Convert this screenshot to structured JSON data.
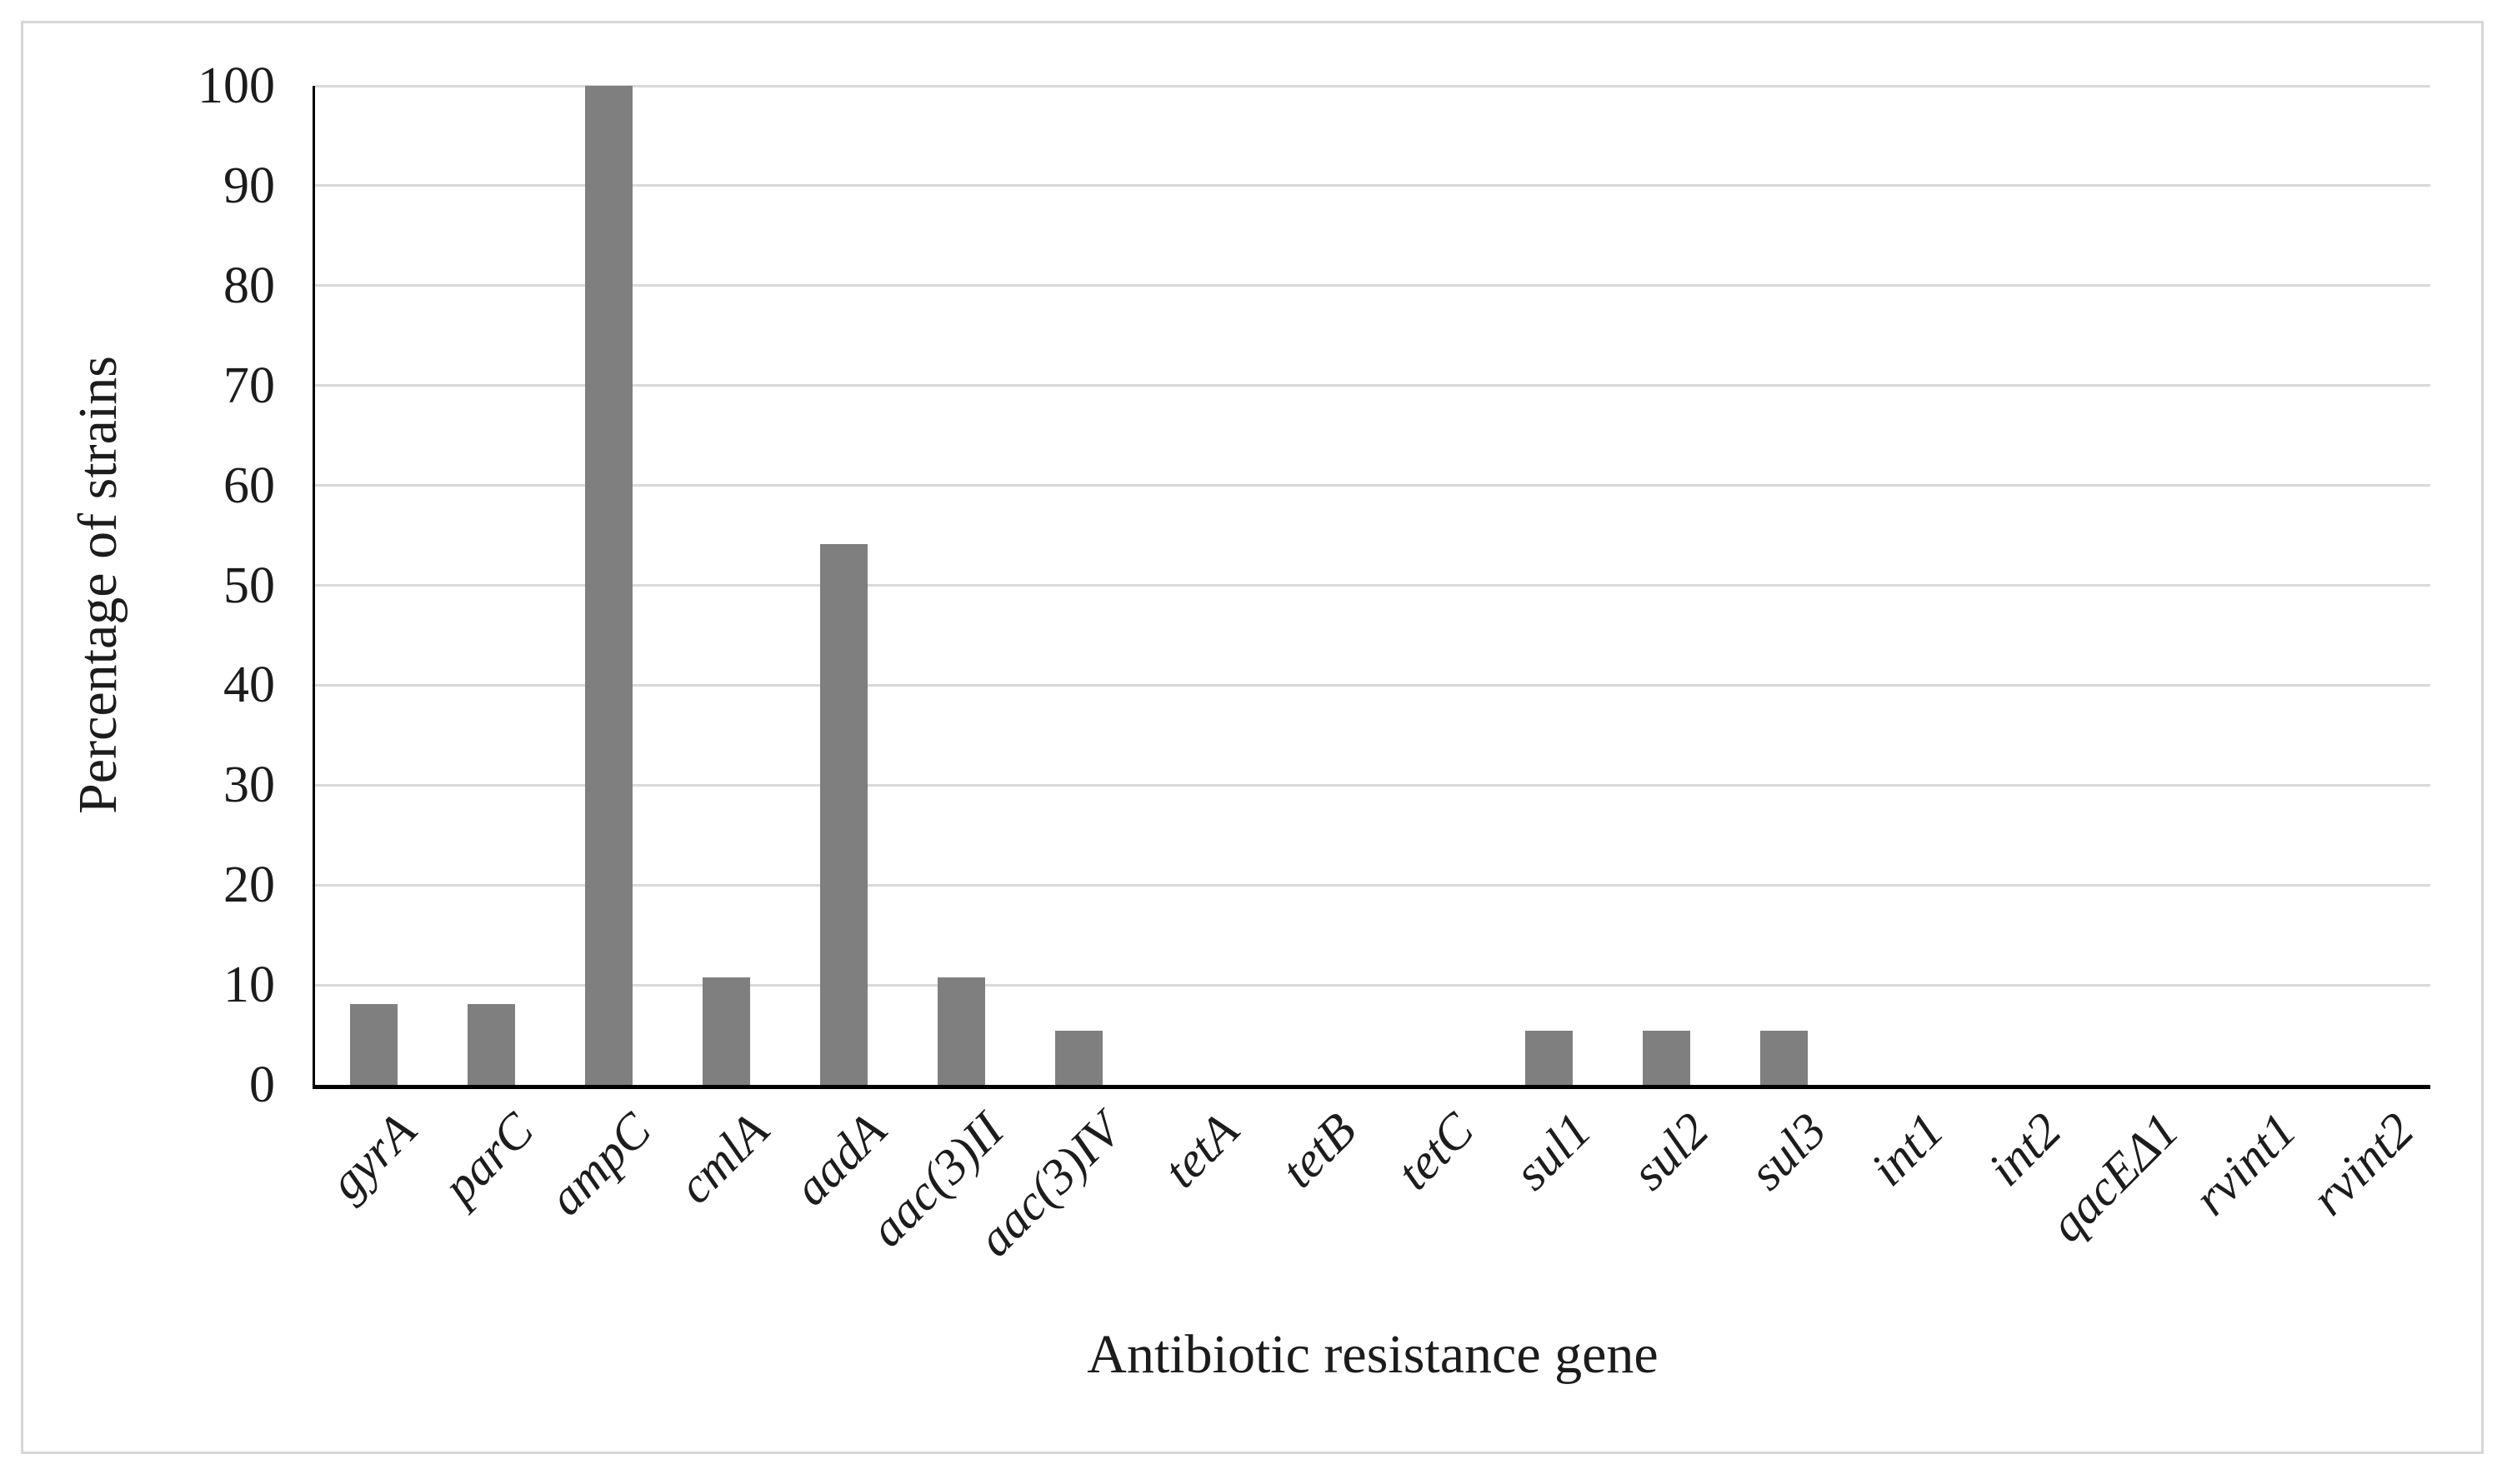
{
  "figure": {
    "background": "#ffffff",
    "frame_color": "#d6d6d6"
  },
  "chart_data": {
    "type": "bar",
    "title": "",
    "xlabel": "Antibiotic resistance gene",
    "ylabel": "Percentage of strains",
    "categories": [
      "gyrA",
      "parC",
      "ampC",
      "cmlA",
      "aadA",
      "aac(3)II",
      "aac(3)IV",
      "tetA",
      "tetB",
      "tetC",
      "sul1",
      "sul2",
      "sul3",
      "int1",
      "int2",
      "qacEΔ1",
      "rvint1",
      "rvint2"
    ],
    "values": [
      8.1,
      8.1,
      100,
      10.8,
      54.1,
      10.8,
      5.4,
      0,
      0,
      0,
      5.4,
      5.4,
      5.4,
      0,
      0,
      0,
      0,
      0
    ],
    "ylim": [
      0,
      100
    ],
    "yticks": [
      0,
      10,
      20,
      30,
      40,
      50,
      60,
      70,
      80,
      90,
      100
    ],
    "grid": true,
    "legend_position": "none",
    "bar_color": "#7f7f7f",
    "gridline_color": "#d9d9d9",
    "axis_color": "#000000",
    "text_color": "#1c1c1c",
    "category_label_style": "italic"
  }
}
